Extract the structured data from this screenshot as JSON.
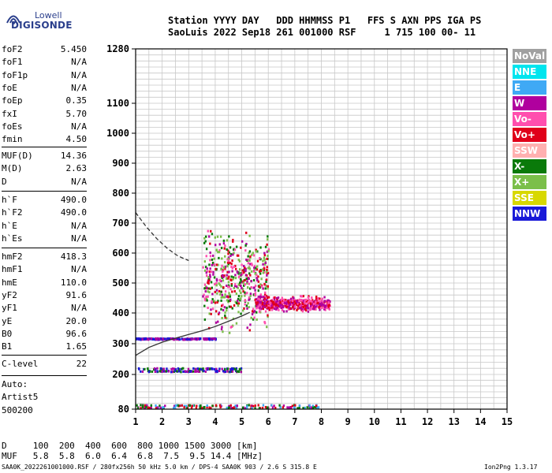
{
  "logo": {
    "top": "Lowell",
    "main": "DIGISONDE",
    "icon": "digisonde-logo-icon"
  },
  "header": {
    "line1": "Station YYYY DAY   DDD HHMMSS P1   FFS S AXN PPS IGA PS",
    "line2": "SaoLuis 2022 Sep18 261 001000 RSF     1 715 100 00- 11"
  },
  "params": {
    "g1": [
      {
        "label": "foF2",
        "value": "5.450"
      },
      {
        "label": "foF1",
        "value": "N/A"
      },
      {
        "label": "foF1p",
        "value": "N/A"
      },
      {
        "label": "foE",
        "value": "N/A"
      },
      {
        "label": "foEp",
        "value": "0.35"
      },
      {
        "label": "fxI",
        "value": "5.70"
      },
      {
        "label": "foEs",
        "value": "N/A"
      },
      {
        "label": "fmin",
        "value": "4.50"
      }
    ],
    "g2": [
      {
        "label": "MUF(D)",
        "value": "14.36"
      },
      {
        "label": "M(D)",
        "value": "2.63"
      },
      {
        "label": "D",
        "value": "N/A"
      }
    ],
    "g3": [
      {
        "label": "h`F",
        "value": "490.0"
      },
      {
        "label": "h`F2",
        "value": "490.0"
      },
      {
        "label": "h`E",
        "value": "N/A"
      },
      {
        "label": "h`Es",
        "value": "N/A"
      }
    ],
    "g4": [
      {
        "label": "hmF2",
        "value": "418.3"
      },
      {
        "label": "hmF1",
        "value": "N/A"
      },
      {
        "label": "hmE",
        "value": "110.0"
      },
      {
        "label": "yF2",
        "value": "91.6"
      },
      {
        "label": "yF1",
        "value": "N/A"
      },
      {
        "label": "yE",
        "value": "20.0"
      },
      {
        "label": "B0",
        "value": "96.6"
      },
      {
        "label": "B1",
        "value": "1.65"
      }
    ],
    "g5": [
      {
        "label": "C-level",
        "value": "22"
      }
    ],
    "g6": [
      {
        "label": "Auto:",
        "value": ""
      },
      {
        "label": "Artist5",
        "value": ""
      },
      {
        "label": "500200",
        "value": ""
      }
    ]
  },
  "legend": [
    {
      "label": "NoVal",
      "bg": "#a0a0a0",
      "fg": "#ffffff"
    },
    {
      "label": "NNE",
      "bg": "#00e5ee",
      "fg": "#ffffff"
    },
    {
      "label": "E",
      "bg": "#3fa9f5",
      "fg": "#ffffff"
    },
    {
      "label": "W",
      "bg": "#b0009e",
      "fg": "#ffffff"
    },
    {
      "label": "Vo-",
      "bg": "#ff4fae",
      "fg": "#ffffff"
    },
    {
      "label": "Vo+",
      "bg": "#e0001a",
      "fg": "#ffffff"
    },
    {
      "label": "SSW",
      "bg": "#ffb0b0",
      "fg": "#ffffff"
    },
    {
      "label": "X-",
      "bg": "#0a7a0a",
      "fg": "#ffffff"
    },
    {
      "label": "X+",
      "bg": "#7bbf4a",
      "fg": "#ffffff"
    },
    {
      "label": "SSE",
      "bg": "#d8d800",
      "fg": "#ffffff"
    },
    {
      "label": "NNW",
      "bg": "#1a1ad8",
      "fg": "#ffffff"
    }
  ],
  "bottom": {
    "d_row": "D     100  200  400  600  800 1000 1500 3000 [km]",
    "muf_row": "MUF   5.8  5.8  6.0  6.4  6.8  7.5  9.5 14.4 [MHz]",
    "footer_left": "SAA0K_2022261001000.RSF / 280fx256h 50 kHz 5.0 km / DPS-4 SAA0K 903 / 2.6 S 315.8 E",
    "footer_right": "Ion2Png 1.3.17"
  },
  "chart_data": {
    "type": "scatter",
    "title": "",
    "xlabel": "",
    "ylabel": "",
    "xlim": [
      1,
      15
    ],
    "ylim": [
      80,
      1280
    ],
    "y_scale": "nonlinear (ionogram virtual height)",
    "x_ticks": [
      1,
      2,
      3,
      4,
      5,
      6,
      7,
      8,
      9,
      10,
      11,
      12,
      13,
      14,
      15
    ],
    "y_ticks": [
      80,
      200,
      300,
      400,
      500,
      600,
      700,
      800,
      900,
      1000,
      1100,
      1280
    ],
    "grid": true,
    "series": [
      {
        "name": "",
        "style": "solid",
        "color": "#333333",
        "x": [
          1.0,
          1.5,
          2.0,
          2.5,
          3.0,
          3.5,
          4.0,
          4.5,
          5.0,
          5.3
        ],
        "y": [
          262,
          288,
          305,
          318,
          330,
          342,
          356,
          373,
          390,
          402
        ]
      },
      {
        "name": "",
        "style": "dashed",
        "color": "#333333",
        "x": [
          1.0,
          1.4,
          1.8,
          2.2,
          2.6,
          3.0
        ],
        "y": [
          735,
          688,
          648,
          615,
          590,
          575
        ]
      }
    ],
    "echo_traces": [
      {
        "name": "",
        "x_range": [
          1.0,
          4.0
        ],
        "y": [
          315
        ],
        "colors": [
          "#b0009e",
          "#1a1ad8"
        ]
      },
      {
        "name": "",
        "x_range": [
          1.0,
          5.0
        ],
        "y": [
          210,
          218
        ],
        "colors": [
          "#b0009e",
          "#0a7a0a",
          "#1a1ad8"
        ]
      },
      {
        "name": "",
        "x_range": [
          1.0,
          8.0
        ],
        "y": [
          85,
          92
        ],
        "colors": [
          "#b0009e",
          "#3fa9f5",
          "#e0001a",
          "#0a7a0a"
        ]
      },
      {
        "name": "",
        "x_range": [
          3.5,
          6.0
        ],
        "y_range": [
          300,
          720
        ],
        "colors": [
          "#b0009e",
          "#ff4fae",
          "#e0001a",
          "#0a7a0a",
          "#7bbf4a"
        ]
      },
      {
        "name": "",
        "x_range": [
          5.5,
          8.3
        ],
        "y_range": [
          400,
          460
        ],
        "colors": [
          "#b0009e",
          "#e0001a",
          "#ff4fae"
        ]
      }
    ]
  }
}
